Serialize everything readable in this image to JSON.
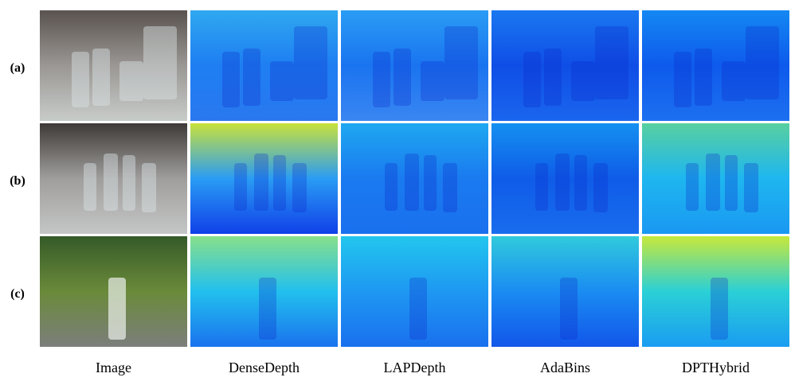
{
  "row_labels": [
    "(a)",
    "(b)",
    "(c)"
  ],
  "column_labels": [
    "Image",
    "DenseDepth",
    "LAPDepth",
    "AdaBins",
    "DPTHybrid"
  ]
}
